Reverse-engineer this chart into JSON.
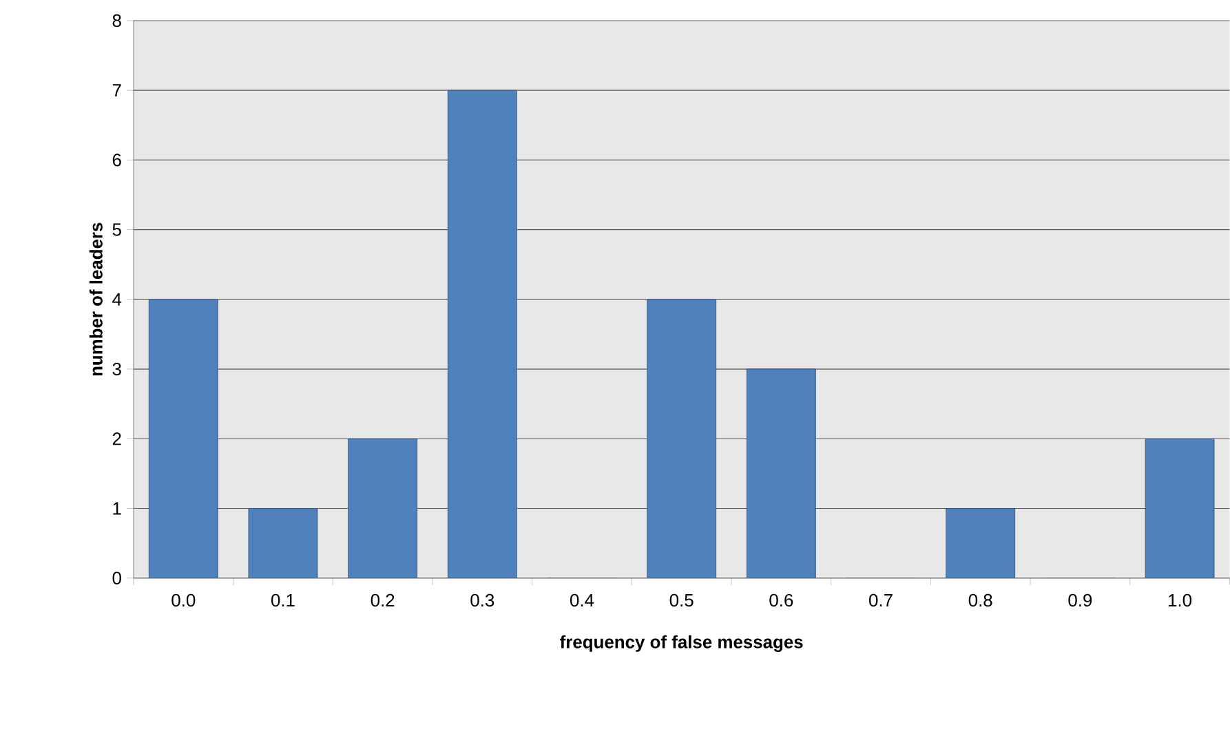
{
  "chart_data": {
    "type": "bar",
    "xlabel": "frequency of false messages",
    "ylabel": "number of leaders",
    "categories": [
      "0.0",
      "0.1",
      "0.2",
      "0.3",
      "0.4",
      "0.5",
      "0.6",
      "0.7",
      "0.8",
      "0.9",
      "1.0"
    ],
    "values": [
      4,
      1,
      2,
      7,
      0,
      4,
      3,
      0,
      1,
      0,
      2
    ],
    "color": "#4f81bd",
    "ylim": [
      0,
      8
    ],
    "yticks": [
      0,
      1,
      2,
      3,
      4,
      5,
      6,
      7,
      8
    ],
    "grid": "y"
  }
}
